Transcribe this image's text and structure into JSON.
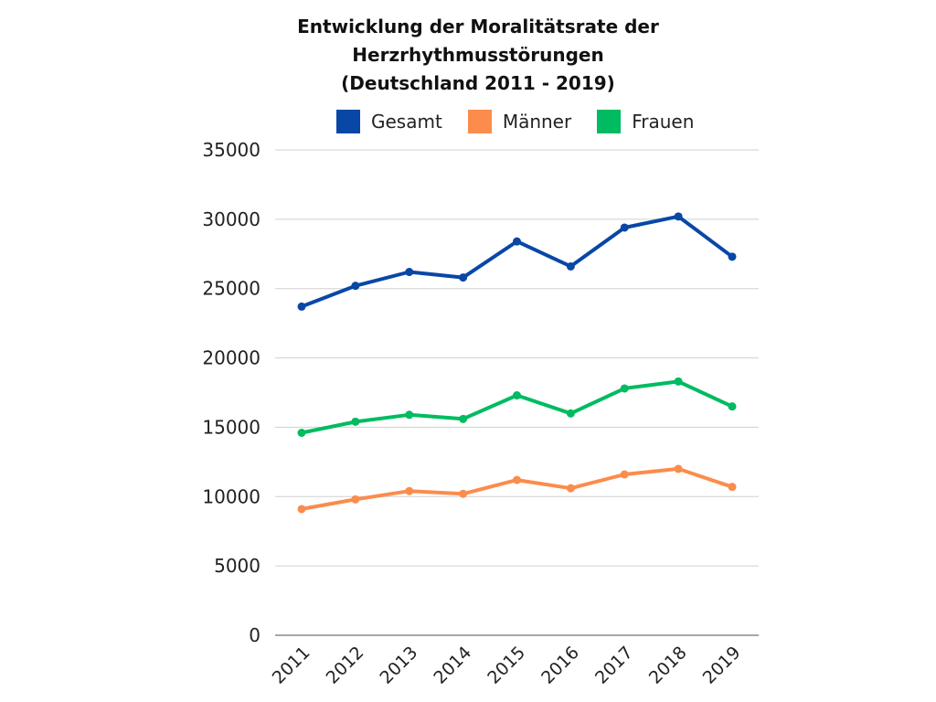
{
  "chart_data": {
    "type": "line",
    "title_lines": [
      "Entwicklung der Moralitätsrate der",
      "Herzrhythmusstörungen",
      "(Deutschland 2011 - 2019)"
    ],
    "xlabel": "",
    "ylabel": "",
    "categories": [
      "2011",
      "2012",
      "2013",
      "2014",
      "2015",
      "2016",
      "2017",
      "2018",
      "2019"
    ],
    "ylim": [
      0,
      35000
    ],
    "yticks": [
      0,
      5000,
      10000,
      15000,
      20000,
      25000,
      30000,
      35000
    ],
    "ytick_labels": [
      "0",
      "5000",
      "10000",
      "15000",
      "20000",
      "25000",
      "30000",
      "35000"
    ],
    "grid": true,
    "legend_position": "top",
    "series": [
      {
        "name": "Gesamt",
        "color": "#0847a6",
        "values": [
          23700,
          25200,
          26200,
          25800,
          28400,
          26600,
          29400,
          30200,
          27300
        ]
      },
      {
        "name": "Männer",
        "color": "#fb8c4c",
        "values": [
          9100,
          9800,
          10400,
          10200,
          11200,
          10600,
          11600,
          12000,
          10700
        ]
      },
      {
        "name": "Frauen",
        "color": "#00bb61",
        "values": [
          14600,
          15400,
          15900,
          15600,
          17300,
          16000,
          17800,
          18300,
          16500
        ]
      }
    ]
  }
}
